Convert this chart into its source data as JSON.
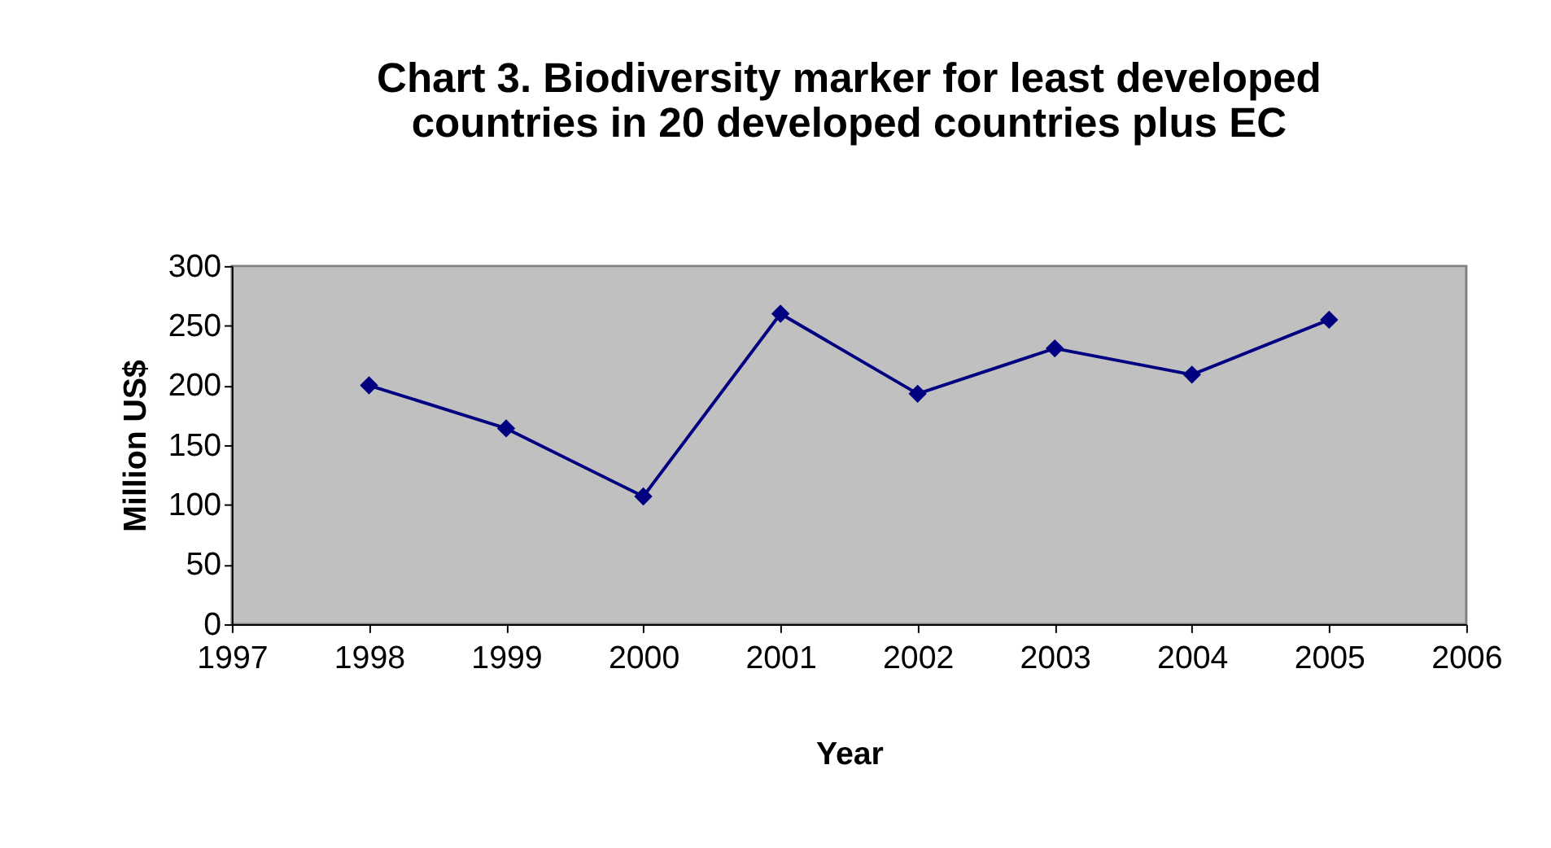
{
  "chart_data": {
    "type": "line",
    "title": "Chart 3. Biodiversity marker for least developed countries in 20 developed countries plus EC",
    "xlabel": "Year",
    "ylabel": "Million US$",
    "x": [
      1998,
      1999,
      2000,
      2001,
      2002,
      2003,
      2004,
      2005
    ],
    "series": [
      {
        "color": "#000080",
        "values": [
          200,
          164,
          107,
          260,
          193,
          231,
          209,
          255
        ]
      }
    ],
    "xlim": [
      1997,
      2006
    ],
    "xticks": [
      1997,
      1998,
      1999,
      2000,
      2001,
      2002,
      2003,
      2004,
      2005,
      2006
    ],
    "ylim": [
      0,
      300
    ],
    "yticks": [
      0,
      50,
      100,
      150,
      200,
      250,
      300
    ],
    "grid": false,
    "legend": false,
    "marker": "diamond",
    "line_style": "solid"
  }
}
